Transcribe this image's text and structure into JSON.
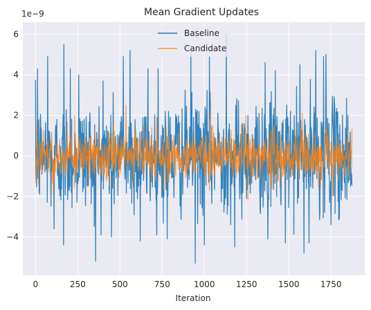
{
  "chart_data": {
    "type": "line",
    "title": "Mean Gradient Updates",
    "xlabel": "Iteration",
    "ylabel": "",
    "y_offset_label": "1e−9",
    "xlim": [
      -75,
      1950
    ],
    "ylim": [
      -5.9,
      6.6
    ],
    "x_ticks": [
      0,
      250,
      500,
      750,
      1000,
      1250,
      1500,
      1750
    ],
    "x_tick_labels": [
      "0",
      "250",
      "500",
      "750",
      "1000",
      "1250",
      "1500",
      "1750"
    ],
    "y_ticks": [
      -4,
      -2,
      0,
      2,
      4,
      6
    ],
    "y_tick_labels": [
      "−4",
      "−2",
      "0",
      "2",
      "4",
      "6"
    ],
    "grid": true,
    "legend_position": "top-center",
    "x_range": [
      0,
      1875
    ],
    "series": [
      {
        "name": "Baseline",
        "color": "#1f77b4",
        "extremes": [
          {
            "x": 12,
            "y": 4.3
          },
          {
            "x": 72,
            "y": 4.9
          },
          {
            "x": 110,
            "y": -3.6
          },
          {
            "x": 165,
            "y": -4.4
          },
          {
            "x": 168,
            "y": 5.5
          },
          {
            "x": 205,
            "y": 4.3
          },
          {
            "x": 255,
            "y": 4.0
          },
          {
            "x": 355,
            "y": -5.2
          },
          {
            "x": 400,
            "y": 3.7
          },
          {
            "x": 450,
            "y": -4.0
          },
          {
            "x": 520,
            "y": 4.9
          },
          {
            "x": 560,
            "y": 5.2
          },
          {
            "x": 620,
            "y": -4.2
          },
          {
            "x": 665,
            "y": 4.3
          },
          {
            "x": 725,
            "y": 4.3
          },
          {
            "x": 780,
            "y": -4.1
          },
          {
            "x": 920,
            "y": 5.1
          },
          {
            "x": 945,
            "y": -5.3
          },
          {
            "x": 1000,
            "y": -4.4
          },
          {
            "x": 1030,
            "y": 4.9
          },
          {
            "x": 1130,
            "y": 6.0
          },
          {
            "x": 1180,
            "y": -4.5
          },
          {
            "x": 1360,
            "y": 4.6
          },
          {
            "x": 1375,
            "y": -4.1
          },
          {
            "x": 1420,
            "y": 4.2
          },
          {
            "x": 1480,
            "y": -4.3
          },
          {
            "x": 1565,
            "y": 4.5
          },
          {
            "x": 1590,
            "y": -4.8
          },
          {
            "x": 1620,
            "y": -4.3
          },
          {
            "x": 1660,
            "y": 5.2
          },
          {
            "x": 1705,
            "y": 4.9
          },
          {
            "x": 1720,
            "y": 5.0
          },
          {
            "x": 1800,
            "y": -3.1
          }
        ]
      },
      {
        "name": "Candidate",
        "color": "#ff7f0e",
        "extremes": [
          {
            "x": 8,
            "y": 1.7
          },
          {
            "x": 105,
            "y": -1.9
          },
          {
            "x": 232,
            "y": 2.0
          },
          {
            "x": 435,
            "y": -1.5
          },
          {
            "x": 535,
            "y": 2.5
          },
          {
            "x": 720,
            "y": 1.9
          },
          {
            "x": 760,
            "y": -1.7
          },
          {
            "x": 1030,
            "y": -1.7
          },
          {
            "x": 1035,
            "y": 2.3
          },
          {
            "x": 1245,
            "y": 2.0
          },
          {
            "x": 1258,
            "y": -2.2
          },
          {
            "x": 1400,
            "y": -1.6
          },
          {
            "x": 1580,
            "y": 2.1
          },
          {
            "x": 1760,
            "y": -2.0
          }
        ]
      }
    ]
  }
}
